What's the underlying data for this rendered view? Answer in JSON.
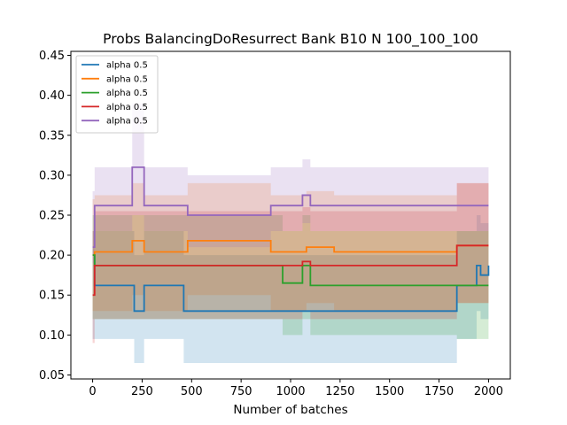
{
  "chart_data": {
    "type": "line",
    "title": "Probs BalancingDoResurrect Bank B10 N 100_100_100",
    "xlabel": "Number of batches",
    "ylabel": "",
    "xlim": [
      -110,
      2110
    ],
    "ylim": [
      0.045,
      0.455
    ],
    "xticks": [
      0,
      250,
      500,
      750,
      1000,
      1250,
      1500,
      1750,
      2000
    ],
    "xtick_labels": [
      "0",
      "250",
      "500",
      "750",
      "1000",
      "1250",
      "1500",
      "1750",
      "2000"
    ],
    "yticks": [
      0.05,
      0.1,
      0.15,
      0.2,
      0.25,
      0.3,
      0.35,
      0.4,
      0.45
    ],
    "ytick_labels": [
      "0.05",
      "0.10",
      "0.15",
      "0.20",
      "0.25",
      "0.30",
      "0.35",
      "0.40",
      "0.45"
    ],
    "grid": false,
    "legend_position": "top-left",
    "series": [
      {
        "name": "alpha 0.5",
        "color": "#1f77b4",
        "x": [
          0,
          10,
          180,
          210,
          260,
          420,
          460,
          1840,
          1940,
          1960,
          2000
        ],
        "y": [
          0.2,
          0.162,
          0.162,
          0.13,
          0.162,
          0.162,
          0.13,
          0.162,
          0.187,
          0.175,
          0.187
        ],
        "band_low": [
          0.095,
          0.095,
          0.095,
          0.065,
          0.095,
          0.095,
          0.065,
          0.095,
          0.13,
          0.12,
          0.13
        ],
        "band_high": [
          0.23,
          0.23,
          0.23,
          0.2,
          0.23,
          0.23,
          0.2,
          0.23,
          0.25,
          0.24,
          0.25
        ]
      },
      {
        "name": "alpha 0.5",
        "color": "#ff7f0e",
        "x": [
          0,
          10,
          180,
          200,
          260,
          420,
          480,
          900,
          1080,
          1220,
          1820,
          1840,
          2000
        ],
        "y": [
          0.2,
          0.204,
          0.204,
          0.218,
          0.204,
          0.204,
          0.218,
          0.204,
          0.21,
          0.204,
          0.204,
          0.212,
          0.212
        ],
        "band_low": [
          0.13,
          0.13,
          0.13,
          0.15,
          0.13,
          0.13,
          0.15,
          0.13,
          0.14,
          0.13,
          0.13,
          0.14,
          0.14
        ],
        "band_high": [
          0.27,
          0.275,
          0.275,
          0.29,
          0.275,
          0.275,
          0.29,
          0.275,
          0.28,
          0.275,
          0.275,
          0.29,
          0.29
        ]
      },
      {
        "name": "alpha 0.5",
        "color": "#2ca02c",
        "x": [
          0,
          10,
          930,
          960,
          1060,
          1100,
          1300,
          1550,
          1820,
          1840,
          2000
        ],
        "y": [
          0.2,
          0.187,
          0.187,
          0.165,
          0.187,
          0.162,
          0.162,
          0.162,
          0.162,
          0.162,
          0.162
        ],
        "band_low": [
          0.12,
          0.12,
          0.12,
          0.1,
          0.12,
          0.1,
          0.1,
          0.1,
          0.1,
          0.095,
          0.095
        ],
        "band_high": [
          0.25,
          0.25,
          0.25,
          0.23,
          0.25,
          0.23,
          0.23,
          0.23,
          0.23,
          0.23,
          0.23
        ]
      },
      {
        "name": "alpha 0.5",
        "color": "#d62728",
        "x": [
          0,
          10,
          900,
          1060,
          1100,
          1500,
          1820,
          1840,
          2000
        ],
        "y": [
          0.15,
          0.187,
          0.187,
          0.192,
          0.187,
          0.187,
          0.187,
          0.212,
          0.212
        ],
        "band_low": [
          0.09,
          0.12,
          0.12,
          0.13,
          0.12,
          0.12,
          0.12,
          0.14,
          0.14
        ],
        "band_high": [
          0.23,
          0.255,
          0.255,
          0.26,
          0.255,
          0.255,
          0.255,
          0.29,
          0.29
        ]
      },
      {
        "name": "alpha 0.5",
        "color": "#9467bd",
        "x": [
          0,
          10,
          170,
          200,
          260,
          420,
          480,
          900,
          1060,
          1100,
          2000
        ],
        "y": [
          0.21,
          0.262,
          0.262,
          0.31,
          0.262,
          0.262,
          0.25,
          0.262,
          0.275,
          0.262,
          0.262
        ],
        "band_low": [
          0.19,
          0.23,
          0.23,
          0.25,
          0.23,
          0.23,
          0.21,
          0.23,
          0.24,
          0.23,
          0.23
        ],
        "band_high": [
          0.28,
          0.31,
          0.31,
          0.39,
          0.31,
          0.31,
          0.3,
          0.31,
          0.32,
          0.31,
          0.31
        ]
      }
    ]
  }
}
